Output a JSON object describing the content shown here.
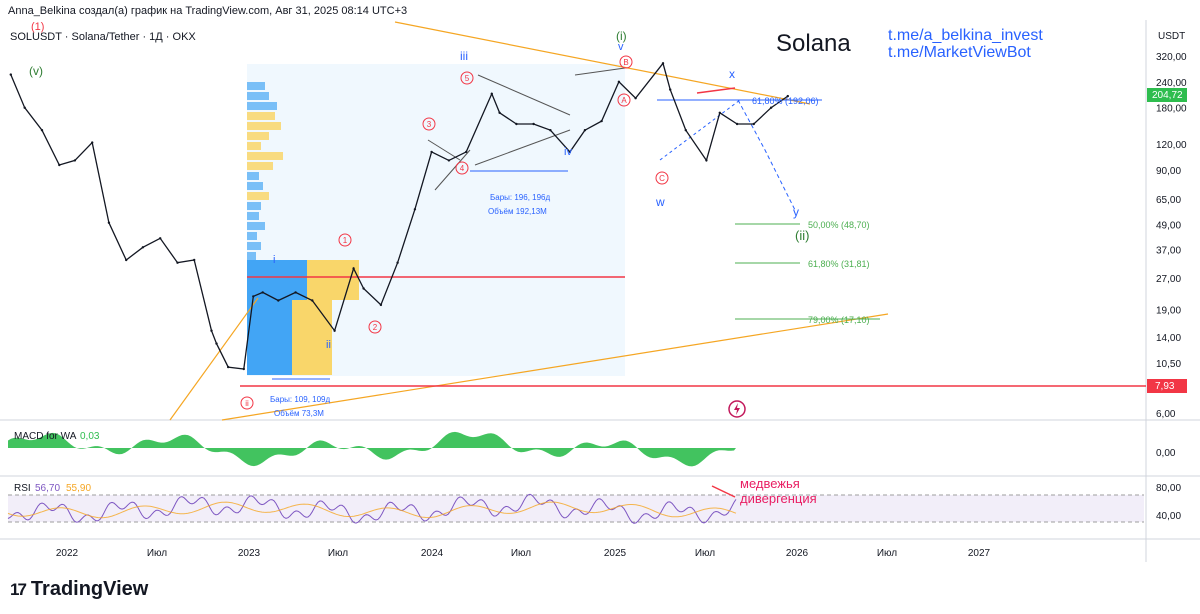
{
  "header": {
    "author_line": "Anna_Belkina создал(а) график на TradingView.com, Авг 31, 2025 08:14 UTC+3",
    "symbol_line": "SOLUSDT · Solana/Tether · 1Д · OKX"
  },
  "overlay": {
    "title": "Solana",
    "links": [
      "t.me/a_belkina_invest",
      "t.me/MarketViewBot"
    ],
    "divergence_note": [
      "медвежья",
      "дивергенция"
    ]
  },
  "price_axis": {
    "currency": "USDT",
    "ticks": [
      "320,00",
      "240,00",
      "180,00",
      "120,00",
      "90,00",
      "65,00",
      "49,00",
      "37,00",
      "27,00",
      "19,00",
      "14,00",
      "10,50",
      "6,00"
    ],
    "current_price": "204,72",
    "level_price": "7,93"
  },
  "macd_axis": {
    "ticks": [
      "0,00"
    ]
  },
  "rsi_axis": {
    "ticks": [
      "80,00",
      "40,00"
    ]
  },
  "time_axis": {
    "labels": [
      "2022",
      "Июл",
      "2023",
      "Июл",
      "2024",
      "Июл",
      "2025",
      "Июл",
      "2026",
      "Июл",
      "2027"
    ]
  },
  "indicators": {
    "macd": {
      "name": "MACD for WA",
      "value": "0,03"
    },
    "rsi": {
      "name": "RSI",
      "value": "56,70",
      "value2": "55,90"
    }
  },
  "annotations": {
    "bars_range_1": [
      "Бары: 196, 196д",
      "Объём 192,13М"
    ],
    "bars_range_2": [
      "Бары: 109, 109д",
      "Объём 73,3М"
    ],
    "fib_top": "61,80% (192,06)",
    "fib_levels": [
      "50,00% (48,70)",
      "61,80% (31,81)",
      "79,00% (17,10)"
    ],
    "wave_labels": [
      "(v)",
      "(i)",
      "(ii)",
      "i",
      "ii",
      "iii",
      "iv",
      "v",
      "w",
      "x",
      "y"
    ],
    "circled_labels": [
      "1",
      "2",
      "3",
      "4",
      "5",
      "A",
      "B",
      "C",
      "i",
      "ii",
      "iii"
    ]
  },
  "brand": "TradingView",
  "colors": {
    "up_fill": "#2ebd4e",
    "accent_blue": "#2962ff",
    "red_line": "#f23645",
    "orange_line": "#f5a623",
    "fib_green": "#4caf50",
    "rsi_line": "#7e57c2",
    "rsi_band": "#ede7f6",
    "volume_profile_blue": "#42a5f5",
    "volume_profile_yellow": "#f9d66a"
  },
  "chart_data": {
    "type": "line",
    "title": "",
    "x_label": "",
    "y_label": "USDT",
    "y_scale": "log",
    "ylim": [
      5.5,
      420
    ],
    "x_range": [
      "2021-11-01",
      "2027-06-01"
    ],
    "series": [
      {
        "name": "",
        "x": [
          "2021-11-06",
          "2021-12-01",
          "2022-01-01",
          "2022-02-01",
          "2022-03-01",
          "2022-04-01",
          "2022-05-01",
          "2022-06-01",
          "2022-07-01",
          "2022-08-01",
          "2022-09-01",
          "2022-10-01",
          "2022-11-01",
          "2022-11-10",
          "2022-12-01",
          "2022-12-29",
          "2023-01-15",
          "2023-02-01",
          "2023-03-01",
          "2023-04-01",
          "2023-05-01",
          "2023-06-10",
          "2023-07-14",
          "2023-08-01",
          "2023-09-01",
          "2023-10-01",
          "2023-11-01",
          "2023-12-01",
          "2024-01-01",
          "2024-02-01",
          "2024-03-18",
          "2024-04-01",
          "2024-05-01",
          "2024-06-01",
          "2024-07-01",
          "2024-08-05",
          "2024-09-01",
          "2024-10-01",
          "2024-11-01",
          "2024-12-01",
          "2025-01-19",
          "2025-02-01",
          "2025-03-01",
          "2025-04-07",
          "2025-05-01",
          "2025-06-01",
          "2025-07-01",
          "2025-08-01",
          "2025-08-31"
        ],
        "y": [
          260,
          180,
          140,
          95,
          100,
          122,
          50,
          33,
          38,
          42,
          32,
          33,
          15,
          13,
          10,
          9.8,
          22,
          23,
          21,
          23,
          21,
          15,
          30,
          24,
          20,
          32,
          58,
          110,
          100,
          110,
          210,
          170,
          150,
          150,
          140,
          110,
          140,
          155,
          240,
          200,
          295,
          220,
          140,
          100,
          170,
          150,
          150,
          180,
          204.72
        ]
      }
    ],
    "reference_lines": [
      {
        "label": "61,80% (192,06)",
        "value": 192.06
      },
      {
        "label": "50,00% (48,70)",
        "value": 48.7
      },
      {
        "label": "61,80% (31,81)",
        "value": 31.81
      },
      {
        "label": "79,00% (17,10)",
        "value": 17.1
      },
      {
        "label": "7,93",
        "value": 7.93
      },
      {
        "label": "",
        "value": 26.5
      }
    ]
  }
}
